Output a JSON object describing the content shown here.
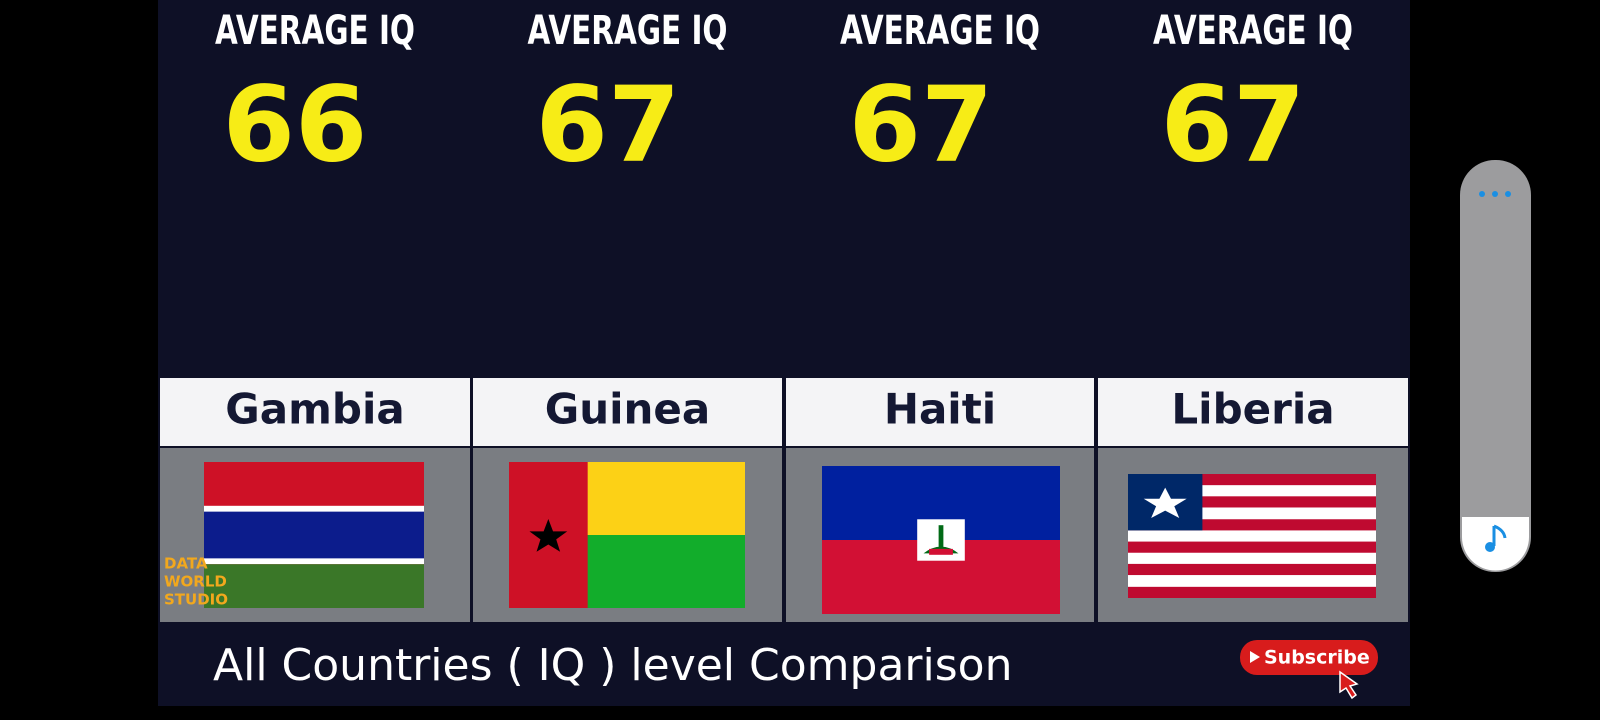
{
  "panels": [
    {
      "label": "AVERAGE IQ",
      "iq": 66,
      "country": "Gambia"
    },
    {
      "label": "AVERAGE IQ",
      "iq": 67,
      "country": "Guinea"
    },
    {
      "label": "AVERAGE IQ",
      "iq": 67,
      "country": "Haiti"
    },
    {
      "label": "AVERAGE IQ",
      "iq": 67,
      "country": "Liberia"
    }
  ],
  "watermark": [
    "DATA",
    "WORLD",
    "STUDIO"
  ],
  "footer": "All Countries ( IQ ) level Comparison",
  "subscribe": "Subscribe"
}
